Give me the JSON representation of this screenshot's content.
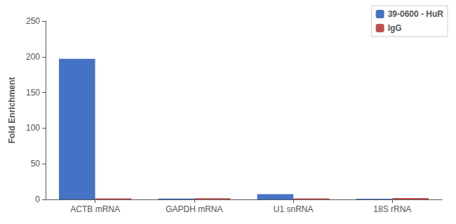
{
  "chart_data": {
    "type": "bar",
    "ylabel": "Fold Enrichment",
    "categories": [
      "ACTB mRNA",
      "GAPDH mRNA",
      "U1 snRNA",
      "18S rRNA"
    ],
    "series": [
      {
        "name": "39-0600 - HuR",
        "color": "#4472C4",
        "values": [
          197,
          1.2,
          7.5,
          1.0
        ]
      },
      {
        "name": "IgG",
        "color": "#C0504D",
        "values": [
          1.5,
          1.8,
          1.5,
          2.0
        ]
      }
    ],
    "ylim": [
      0,
      250
    ],
    "yticks": [
      0,
      50,
      100,
      150,
      200,
      250
    ],
    "grid": false,
    "legend": "upper right"
  }
}
